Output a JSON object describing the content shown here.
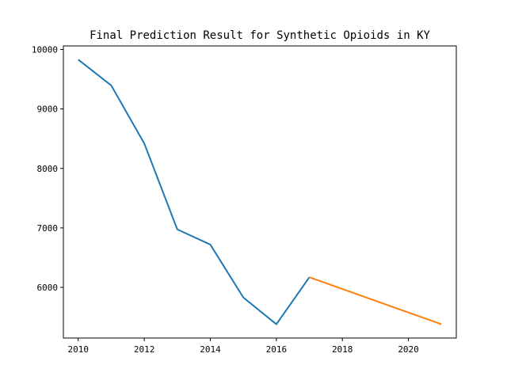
{
  "chart_data": {
    "type": "line",
    "title": "Final Prediction Result for Synthetic Opioids in KY",
    "xlabel": "",
    "ylabel": "",
    "xlim": [
      2009.55,
      2021.45
    ],
    "ylim": [
      5148,
      10060
    ],
    "x_ticks": [
      2010,
      2012,
      2014,
      2016,
      2018,
      2020
    ],
    "y_ticks": [
      6000,
      7000,
      8000,
      9000,
      10000
    ],
    "grid": false,
    "legend": "none",
    "series": [
      {
        "color": "#1f77b4",
        "x": [
          2010,
          2011,
          2012,
          2013,
          2014,
          2015,
          2016,
          2017
        ],
        "y": [
          9830,
          9395,
          8420,
          6975,
          6720,
          5830,
          5380,
          6170
        ]
      },
      {
        "color": "#ff7f0e",
        "x": [
          2017,
          2021
        ],
        "y": [
          6170,
          5380
        ]
      }
    ]
  }
}
